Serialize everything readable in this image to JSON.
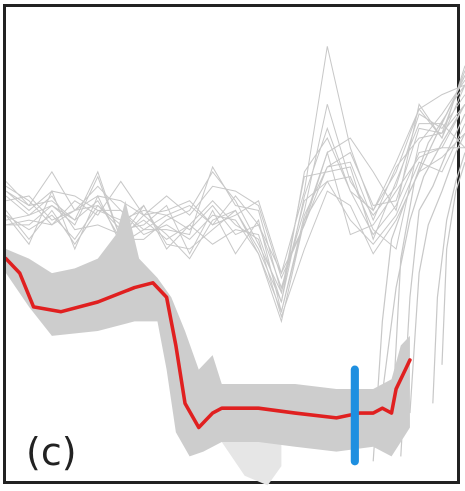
{
  "panel_label": "(c)",
  "colors": {
    "background_lines": "#c8c8c8",
    "band": "#cdcdcd",
    "light_shade": "#e6e6e6",
    "mean_line": "#e02020",
    "marker": "#1e8fe0",
    "frame": "#222222"
  },
  "chart_data": {
    "type": "line",
    "title": "",
    "xlabel": "",
    "ylabel": "",
    "axes_visible": false,
    "grid": false,
    "legend": "none",
    "mean_path": [
      [
        0.0,
        0.48
      ],
      [
        0.03,
        0.45
      ],
      [
        0.06,
        0.38
      ],
      [
        0.12,
        0.37
      ],
      [
        0.2,
        0.39
      ],
      [
        0.28,
        0.42
      ],
      [
        0.32,
        0.43
      ],
      [
        0.35,
        0.4
      ],
      [
        0.37,
        0.3
      ],
      [
        0.39,
        0.18
      ],
      [
        0.42,
        0.13
      ],
      [
        0.45,
        0.16
      ],
      [
        0.47,
        0.17
      ],
      [
        0.55,
        0.17
      ],
      [
        0.63,
        0.16
      ],
      [
        0.72,
        0.15
      ],
      [
        0.77,
        0.16
      ],
      [
        0.8,
        0.16
      ],
      [
        0.82,
        0.17
      ],
      [
        0.84,
        0.16
      ],
      [
        0.85,
        0.21
      ],
      [
        0.87,
        0.25
      ],
      [
        0.88,
        0.27
      ]
    ],
    "band_upper": [
      [
        0.0,
        0.5
      ],
      [
        0.05,
        0.48
      ],
      [
        0.1,
        0.45
      ],
      [
        0.15,
        0.46
      ],
      [
        0.2,
        0.48
      ],
      [
        0.24,
        0.53
      ],
      [
        0.26,
        0.6
      ],
      [
        0.29,
        0.48
      ],
      [
        0.33,
        0.44
      ],
      [
        0.36,
        0.4
      ],
      [
        0.39,
        0.33
      ],
      [
        0.42,
        0.25
      ],
      [
        0.45,
        0.28
      ],
      [
        0.47,
        0.22
      ],
      [
        0.55,
        0.22
      ],
      [
        0.63,
        0.22
      ],
      [
        0.72,
        0.21
      ],
      [
        0.8,
        0.21
      ],
      [
        0.84,
        0.23
      ],
      [
        0.86,
        0.3
      ],
      [
        0.88,
        0.32
      ]
    ],
    "band_lower": [
      [
        0.0,
        0.45
      ],
      [
        0.05,
        0.38
      ],
      [
        0.1,
        0.32
      ],
      [
        0.2,
        0.33
      ],
      [
        0.28,
        0.35
      ],
      [
        0.33,
        0.35
      ],
      [
        0.35,
        0.25
      ],
      [
        0.37,
        0.12
      ],
      [
        0.4,
        0.07
      ],
      [
        0.43,
        0.08
      ],
      [
        0.47,
        0.1
      ],
      [
        0.55,
        0.1
      ],
      [
        0.63,
        0.09
      ],
      [
        0.72,
        0.08
      ],
      [
        0.8,
        0.09
      ],
      [
        0.84,
        0.07
      ],
      [
        0.86,
        0.1
      ],
      [
        0.88,
        0.13
      ]
    ],
    "light_shade": [
      [
        0.47,
        0.1
      ],
      [
        0.52,
        0.03
      ],
      [
        0.57,
        0.01
      ],
      [
        0.6,
        0.05
      ],
      [
        0.6,
        0.1
      ]
    ],
    "marker": {
      "x": 0.76,
      "y_min": 0.06,
      "y_max": 0.25
    },
    "background_series": [
      [
        [
          0.0,
          0.62
        ],
        [
          0.05,
          0.59
        ],
        [
          0.1,
          0.66
        ],
        [
          0.15,
          0.58
        ],
        [
          0.2,
          0.61
        ],
        [
          0.25,
          0.6
        ],
        [
          0.3,
          0.57
        ],
        [
          0.35,
          0.61
        ],
        [
          0.4,
          0.57
        ],
        [
          0.45,
          0.63
        ],
        [
          0.5,
          0.62
        ],
        [
          0.55,
          0.59
        ],
        [
          0.6,
          0.44
        ],
        [
          0.65,
          0.55
        ],
        [
          0.7,
          0.7
        ],
        [
          0.75,
          0.73
        ],
        [
          0.8,
          0.66
        ],
        [
          0.85,
          0.58
        ],
        [
          0.9,
          0.8
        ],
        [
          0.95,
          0.73
        ],
        [
          1.0,
          0.88
        ]
      ],
      [
        [
          0.0,
          0.57
        ],
        [
          0.05,
          0.51
        ],
        [
          0.1,
          0.62
        ],
        [
          0.15,
          0.5
        ],
        [
          0.2,
          0.61
        ],
        [
          0.25,
          0.51
        ],
        [
          0.3,
          0.54
        ],
        [
          0.35,
          0.54
        ],
        [
          0.4,
          0.53
        ],
        [
          0.45,
          0.67
        ],
        [
          0.5,
          0.59
        ],
        [
          0.55,
          0.58
        ],
        [
          0.6,
          0.41
        ],
        [
          0.65,
          0.6
        ],
        [
          0.7,
          0.64
        ],
        [
          0.75,
          0.65
        ],
        [
          0.8,
          0.54
        ],
        [
          0.85,
          0.5
        ],
        [
          0.9,
          0.72
        ],
        [
          0.95,
          0.78
        ],
        [
          1.0,
          0.85
        ]
      ],
      [
        [
          0.0,
          0.63
        ],
        [
          0.05,
          0.6
        ],
        [
          0.1,
          0.55
        ],
        [
          0.15,
          0.6
        ],
        [
          0.2,
          0.57
        ],
        [
          0.25,
          0.64
        ],
        [
          0.3,
          0.57
        ],
        [
          0.35,
          0.58
        ],
        [
          0.4,
          0.6
        ],
        [
          0.45,
          0.55
        ],
        [
          0.5,
          0.61
        ],
        [
          0.55,
          0.55
        ],
        [
          0.6,
          0.45
        ],
        [
          0.65,
          0.62
        ],
        [
          0.7,
          0.92
        ],
        [
          0.75,
          0.71
        ],
        [
          0.8,
          0.58
        ],
        [
          0.85,
          0.68
        ],
        [
          0.9,
          0.79
        ],
        [
          0.95,
          0.82
        ],
        [
          1.0,
          0.84
        ]
      ],
      [
        [
          0.0,
          0.55
        ],
        [
          0.05,
          0.55
        ],
        [
          0.1,
          0.59
        ],
        [
          0.15,
          0.56
        ],
        [
          0.2,
          0.6
        ],
        [
          0.25,
          0.52
        ],
        [
          0.3,
          0.57
        ],
        [
          0.35,
          0.53
        ],
        [
          0.4,
          0.48
        ],
        [
          0.45,
          0.56
        ],
        [
          0.5,
          0.58
        ],
        [
          0.55,
          0.49
        ],
        [
          0.6,
          0.37
        ],
        [
          0.65,
          0.56
        ],
        [
          0.7,
          0.7
        ],
        [
          0.75,
          0.53
        ],
        [
          0.8,
          0.55
        ],
        [
          0.85,
          0.62
        ],
        [
          0.9,
          0.69
        ],
        [
          0.95,
          0.71
        ],
        [
          1.0,
          0.8
        ]
      ],
      [
        [
          0.0,
          0.64
        ],
        [
          0.05,
          0.59
        ],
        [
          0.1,
          0.6
        ],
        [
          0.15,
          0.56
        ],
        [
          0.2,
          0.66
        ],
        [
          0.25,
          0.52
        ],
        [
          0.3,
          0.52
        ],
        [
          0.35,
          0.56
        ],
        [
          0.4,
          0.58
        ],
        [
          0.45,
          0.66
        ],
        [
          0.5,
          0.6
        ],
        [
          0.55,
          0.51
        ],
        [
          0.6,
          0.41
        ],
        [
          0.65,
          0.65
        ],
        [
          0.7,
          0.66
        ],
        [
          0.75,
          0.67
        ],
        [
          0.8,
          0.52
        ],
        [
          0.85,
          0.64
        ],
        [
          0.9,
          0.76
        ],
        [
          0.95,
          0.76
        ],
        [
          1.0,
          0.71
        ]
      ],
      [
        [
          0.0,
          0.61
        ],
        [
          0.05,
          0.57
        ],
        [
          0.1,
          0.59
        ],
        [
          0.15,
          0.55
        ],
        [
          0.2,
          0.65
        ],
        [
          0.25,
          0.52
        ],
        [
          0.3,
          0.59
        ],
        [
          0.35,
          0.5
        ],
        [
          0.4,
          0.55
        ],
        [
          0.45,
          0.51
        ],
        [
          0.5,
          0.54
        ],
        [
          0.55,
          0.53
        ],
        [
          0.6,
          0.39
        ],
        [
          0.65,
          0.66
        ],
        [
          0.7,
          0.73
        ],
        [
          0.75,
          0.62
        ],
        [
          0.8,
          0.58
        ],
        [
          0.85,
          0.66
        ],
        [
          0.9,
          0.79
        ],
        [
          0.95,
          0.73
        ],
        [
          1.0,
          0.84
        ]
      ],
      [
        [
          0.0,
          0.55
        ],
        [
          0.05,
          0.56
        ],
        [
          0.1,
          0.55
        ],
        [
          0.15,
          0.58
        ],
        [
          0.2,
          0.59
        ],
        [
          0.25,
          0.54
        ],
        [
          0.3,
          0.55
        ],
        [
          0.35,
          0.59
        ],
        [
          0.4,
          0.49
        ],
        [
          0.45,
          0.58
        ],
        [
          0.5,
          0.49
        ],
        [
          0.55,
          0.56
        ],
        [
          0.6,
          0.37
        ],
        [
          0.65,
          0.57
        ],
        [
          0.7,
          0.67
        ],
        [
          0.75,
          0.7
        ],
        [
          0.8,
          0.59
        ],
        [
          0.85,
          0.6
        ],
        [
          0.9,
          0.75
        ],
        [
          0.95,
          0.74
        ],
        [
          1.0,
          0.8
        ]
      ],
      [
        [
          0.0,
          0.58
        ],
        [
          0.05,
          0.52
        ],
        [
          0.1,
          0.58
        ],
        [
          0.15,
          0.51
        ],
        [
          0.2,
          0.58
        ],
        [
          0.25,
          0.58
        ],
        [
          0.3,
          0.53
        ],
        [
          0.35,
          0.55
        ],
        [
          0.4,
          0.52
        ],
        [
          0.45,
          0.57
        ],
        [
          0.5,
          0.56
        ],
        [
          0.55,
          0.49
        ],
        [
          0.6,
          0.35
        ],
        [
          0.65,
          0.56
        ],
        [
          0.7,
          0.64
        ],
        [
          0.75,
          0.56
        ],
        [
          0.8,
          0.51
        ],
        [
          0.85,
          0.57
        ],
        [
          0.9,
          0.68
        ],
        [
          0.95,
          0.66
        ],
        [
          1.0,
          0.76
        ]
      ],
      [
        [
          0.0,
          0.62
        ],
        [
          0.05,
          0.58
        ],
        [
          0.1,
          0.62
        ],
        [
          0.15,
          0.61
        ],
        [
          0.2,
          0.58
        ],
        [
          0.25,
          0.56
        ],
        [
          0.3,
          0.58
        ],
        [
          0.35,
          0.57
        ],
        [
          0.4,
          0.59
        ],
        [
          0.45,
          0.55
        ],
        [
          0.5,
          0.57
        ],
        [
          0.55,
          0.6
        ],
        [
          0.6,
          0.45
        ],
        [
          0.65,
          0.55
        ],
        [
          0.7,
          0.67
        ],
        [
          0.75,
          0.68
        ],
        [
          0.8,
          0.56
        ],
        [
          0.85,
          0.67
        ],
        [
          0.9,
          0.73
        ],
        [
          0.95,
          0.74
        ],
        [
          1.0,
          0.87
        ]
      ],
      [
        [
          0.0,
          0.57
        ],
        [
          0.05,
          0.54
        ],
        [
          0.1,
          0.57
        ],
        [
          0.15,
          0.52
        ],
        [
          0.2,
          0.59
        ],
        [
          0.25,
          0.55
        ],
        [
          0.3,
          0.59
        ],
        [
          0.35,
          0.51
        ],
        [
          0.4,
          0.5
        ],
        [
          0.45,
          0.54
        ],
        [
          0.5,
          0.58
        ],
        [
          0.55,
          0.5
        ],
        [
          0.6,
          0.39
        ],
        [
          0.65,
          0.61
        ],
        [
          0.7,
          0.75
        ],
        [
          0.75,
          0.62
        ],
        [
          0.8,
          0.53
        ],
        [
          0.85,
          0.59
        ],
        [
          0.9,
          0.7
        ],
        [
          0.95,
          0.71
        ],
        [
          1.0,
          0.71
        ]
      ],
      [
        [
          0.0,
          0.6
        ],
        [
          0.05,
          0.61
        ],
        [
          0.1,
          0.56
        ],
        [
          0.15,
          0.58
        ],
        [
          0.2,
          0.63
        ],
        [
          0.25,
          0.58
        ],
        [
          0.3,
          0.54
        ],
        [
          0.35,
          0.57
        ],
        [
          0.4,
          0.54
        ],
        [
          0.45,
          0.59
        ],
        [
          0.5,
          0.53
        ],
        [
          0.55,
          0.55
        ],
        [
          0.6,
          0.42
        ],
        [
          0.65,
          0.58
        ],
        [
          0.7,
          0.8
        ],
        [
          0.75,
          0.64
        ],
        [
          0.8,
          0.57
        ],
        [
          0.85,
          0.63
        ],
        [
          0.9,
          0.78
        ],
        [
          0.95,
          0.75
        ],
        [
          1.0,
          0.82
        ]
      ],
      [
        [
          0.0,
          0.56
        ],
        [
          0.05,
          0.57
        ],
        [
          0.1,
          0.61
        ],
        [
          0.15,
          0.54
        ],
        [
          0.2,
          0.55
        ],
        [
          0.25,
          0.53
        ],
        [
          0.3,
          0.56
        ],
        [
          0.35,
          0.52
        ],
        [
          0.4,
          0.55
        ],
        [
          0.45,
          0.6
        ],
        [
          0.5,
          0.55
        ],
        [
          0.55,
          0.52
        ],
        [
          0.6,
          0.36
        ],
        [
          0.65,
          0.5
        ],
        [
          0.7,
          0.62
        ],
        [
          0.75,
          0.59
        ],
        [
          0.8,
          0.49
        ],
        [
          0.85,
          0.56
        ],
        [
          0.9,
          0.66
        ],
        [
          0.95,
          0.69
        ],
        [
          1.0,
          0.74
        ]
      ]
    ],
    "steep_series": [
      [
        [
          0.8,
          0.06
        ],
        [
          0.82,
          0.35
        ],
        [
          0.84,
          0.52
        ],
        [
          0.87,
          0.6
        ],
        [
          0.9,
          0.66
        ],
        [
          0.94,
          0.74
        ],
        [
          0.97,
          0.8
        ],
        [
          1.0,
          0.84
        ]
      ],
      [
        [
          0.86,
          0.07
        ],
        [
          0.88,
          0.4
        ],
        [
          0.9,
          0.58
        ],
        [
          0.93,
          0.63
        ],
        [
          0.96,
          0.7
        ],
        [
          1.0,
          0.78
        ]
      ],
      [
        [
          0.88,
          0.16
        ],
        [
          0.9,
          0.45
        ],
        [
          0.92,
          0.55
        ],
        [
          0.95,
          0.62
        ],
        [
          0.98,
          0.7
        ],
        [
          1.0,
          0.74
        ]
      ],
      [
        [
          0.84,
          0.12
        ],
        [
          0.86,
          0.48
        ],
        [
          0.89,
          0.64
        ],
        [
          0.92,
          0.72
        ],
        [
          0.96,
          0.78
        ],
        [
          1.0,
          0.86
        ]
      ],
      [
        [
          0.82,
          0.2
        ],
        [
          0.85,
          0.42
        ],
        [
          0.88,
          0.56
        ],
        [
          0.91,
          0.65
        ],
        [
          0.95,
          0.72
        ],
        [
          1.0,
          0.8
        ]
      ],
      [
        [
          0.93,
          0.18
        ],
        [
          0.94,
          0.4
        ],
        [
          0.96,
          0.56
        ],
        [
          0.98,
          0.64
        ],
        [
          1.0,
          0.7
        ]
      ],
      [
        [
          0.95,
          0.26
        ],
        [
          0.96,
          0.5
        ],
        [
          0.98,
          0.62
        ],
        [
          1.0,
          0.68
        ]
      ]
    ]
  }
}
